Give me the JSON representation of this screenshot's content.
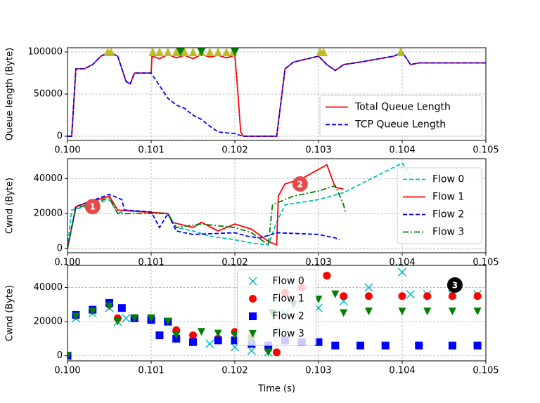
{
  "chart_data": [
    {
      "type": "line",
      "ylabel": "Queue length (Byte)",
      "xlim": [
        0.1,
        0.105
      ],
      "ylim": [
        -5000,
        105000
      ],
      "xticks": [
        {
          "value": 0.1,
          "label": "0.100"
        },
        {
          "value": 0.101,
          "label": "0.101"
        },
        {
          "value": 0.102,
          "label": "0.102"
        },
        {
          "value": 0.103,
          "label": "0.103"
        },
        {
          "value": 0.104,
          "label": "0.104"
        },
        {
          "value": 0.105,
          "label": "0.105"
        }
      ],
      "yticks": [
        0,
        50000,
        100000
      ],
      "grid": true,
      "legend_loc": "lower right",
      "series": [
        {
          "name": "Total Queue Length",
          "color": "#ff0000",
          "linestyle": "solid",
          "x": [
            0.1,
            0.10005,
            0.1001,
            0.1002,
            0.1003,
            0.1004,
            0.1005,
            0.1006,
            0.1007,
            0.10075,
            0.1008,
            0.101,
            0.10101,
            0.1011,
            0.1012,
            0.1013,
            0.1014,
            0.1015,
            0.1016,
            0.1017,
            0.1018,
            0.1019,
            0.102,
            0.10203,
            0.10207,
            0.1021,
            0.1025,
            0.1026,
            0.1027,
            0.103,
            0.1031,
            0.1032,
            0.1033,
            0.1035,
            0.1039,
            0.104,
            0.1041,
            0.1042,
            0.105
          ],
          "values": [
            0,
            0,
            80000,
            80000,
            85000,
            95000,
            100000,
            95000,
            65000,
            62000,
            75000,
            75000,
            95000,
            92000,
            97000,
            93000,
            96000,
            92000,
            97000,
            94000,
            96000,
            93000,
            96000,
            60000,
            5000,
            0,
            0,
            80000,
            88000,
            95000,
            85000,
            78000,
            85000,
            88000,
            95000,
            100000,
            85000,
            87000,
            87000
          ]
        },
        {
          "name": "TCP Queue Length",
          "color": "#0000ff",
          "linestyle": "dashed",
          "x": [
            0.1,
            0.10005,
            0.1001,
            0.1002,
            0.1003,
            0.1004,
            0.1005,
            0.1006,
            0.1007,
            0.10075,
            0.1008,
            0.101,
            0.1011,
            0.1012,
            0.1013,
            0.1014,
            0.1015,
            0.1016,
            0.1017,
            0.1018,
            0.102,
            0.1021,
            0.1025,
            0.1026,
            0.1027,
            0.103,
            0.1031,
            0.1032,
            0.1033,
            0.1035,
            0.1039,
            0.104,
            0.1041,
            0.1042,
            0.105
          ],
          "values": [
            0,
            0,
            80000,
            80000,
            85000,
            95000,
            100000,
            95000,
            65000,
            62000,
            75000,
            75000,
            60000,
            45000,
            37000,
            33000,
            25000,
            20000,
            12000,
            5000,
            3000,
            0,
            0,
            80000,
            88000,
            95000,
            85000,
            78000,
            85000,
            88000,
            95000,
            100000,
            85000,
            87000,
            87000
          ]
        },
        {
          "color": "#bcbd22",
          "marker": "^",
          "x": [
            0.10048,
            0.10052,
            0.10102,
            0.1011,
            0.1012,
            0.1013,
            0.1014,
            0.1015,
            0.1016,
            0.1017,
            0.1018,
            0.1019,
            0.10198,
            0.10302,
            0.10306,
            0.10398
          ],
          "values": [
            100000,
            100000,
            100000,
            100000,
            100000,
            100000,
            100000,
            100000,
            100000,
            100000,
            100000,
            100000,
            100000,
            100000,
            100000,
            100000
          ]
        },
        {
          "color": "#008000",
          "marker": "v",
          "x": [
            0.10135,
            0.1016,
            0.102
          ],
          "values": [
            100000,
            100000,
            100000
          ]
        }
      ]
    },
    {
      "type": "line",
      "ylabel": "Cwnd (Byte)",
      "xlim": [
        0.1,
        0.105
      ],
      "ylim": [
        -2500,
        51500
      ],
      "xticks": [
        {
          "value": 0.1,
          "label": "0.100"
        },
        {
          "value": 0.101,
          "label": "0.101"
        },
        {
          "value": 0.102,
          "label": "0.102"
        },
        {
          "value": 0.103,
          "label": "0.103"
        },
        {
          "value": 0.104,
          "label": "0.104"
        },
        {
          "value": 0.105,
          "label": "0.105"
        }
      ],
      "yticks": [
        0,
        20000,
        40000
      ],
      "grid": true,
      "legend_loc": "center right",
      "series": [
        {
          "name": "Flow 0",
          "color": "#00bfbf",
          "linestyle": "dashed",
          "x": [
            0.1,
            0.10005,
            0.1003,
            0.1005,
            0.1006,
            0.1007,
            0.1012,
            0.1013,
            0.1015,
            0.1017,
            0.102,
            0.1022,
            0.1024,
            0.1025,
            0.1026,
            0.103,
            0.1033,
            0.104,
            0.1041
          ],
          "values": [
            0,
            22000,
            25000,
            28000,
            20000,
            22000,
            20000,
            12000,
            10000,
            7000,
            5000,
            3000,
            2000,
            15000,
            25000,
            28000,
            32000,
            49000,
            42000
          ]
        },
        {
          "name": "Flow 1",
          "color": "#ff0000",
          "linestyle": "solid",
          "x": [
            0.1,
            0.1001,
            0.1005,
            0.1006,
            0.1012,
            0.10125,
            0.1015,
            0.1016,
            0.1018,
            0.102,
            0.1022,
            0.1024,
            0.1025,
            0.10252,
            0.1026,
            0.1028,
            0.1031,
            0.1032,
            0.1033
          ],
          "values": [
            0,
            24000,
            30000,
            22000,
            20000,
            15000,
            12000,
            15000,
            10000,
            14000,
            11000,
            4000,
            2000,
            30000,
            37000,
            40000,
            48000,
            35000,
            34000
          ]
        },
        {
          "name": "Flow 2",
          "color": "#0000ff",
          "linestyle": "dashed",
          "x": [
            0.1,
            0.1001,
            0.1005,
            0.10065,
            0.10068,
            0.101,
            0.1011,
            0.1012,
            0.1013,
            0.1015,
            0.102,
            0.10215,
            0.1023,
            0.1025,
            0.103,
            0.1032,
            0.10325
          ],
          "values": [
            0,
            24000,
            31000,
            28000,
            22000,
            21000,
            12000,
            20000,
            10000,
            8000,
            9000,
            7000,
            6000,
            9000,
            8000,
            6000,
            5000
          ]
        },
        {
          "name": "Flow 3",
          "color": "#008000",
          "linestyle": "dashdot",
          "x": [
            0.1,
            0.1001,
            0.1005,
            0.1006,
            0.1012,
            0.1013,
            0.1016,
            0.102,
            0.1022,
            0.1024,
            0.10245,
            0.1027,
            0.103,
            0.1032,
            0.1033,
            0.10332
          ],
          "values": [
            0,
            23000,
            29000,
            20000,
            20000,
            12000,
            14000,
            12000,
            9000,
            2000,
            25000,
            30000,
            33000,
            36000,
            25000,
            21000
          ]
        }
      ],
      "annotations": [
        {
          "text": "1",
          "x": 0.1003,
          "y": 24000,
          "color": "#e84a4a"
        },
        {
          "text": "2",
          "x": 0.10278,
          "y": 37000,
          "color": "#e84a4a"
        }
      ]
    },
    {
      "type": "scatter",
      "ylabel": "Cwnd (Byte)",
      "xlabel": "Time (s)",
      "xlim": [
        0.1,
        0.105
      ],
      "ylim": [
        -3000,
        53000
      ],
      "xticks": [
        {
          "value": 0.1,
          "label": "0.100"
        },
        {
          "value": 0.101,
          "label": "0.101"
        },
        {
          "value": 0.102,
          "label": "0.102"
        },
        {
          "value": 0.103,
          "label": "0.103"
        },
        {
          "value": 0.104,
          "label": "0.104"
        },
        {
          "value": 0.105,
          "label": "0.105"
        }
      ],
      "yticks": [
        0,
        20000,
        40000
      ],
      "grid": true,
      "legend_loc": "upper center",
      "series": [
        {
          "name": "Flow 0",
          "color": "#00bfbf",
          "marker": "x",
          "x": [
            0.1,
            0.1001,
            0.1003,
            0.1005,
            0.1006,
            0.1007,
            0.101,
            0.1012,
            0.1013,
            0.1015,
            0.1017,
            0.102,
            0.1022,
            0.1024,
            0.1025,
            0.1026,
            0.103,
            0.1033,
            0.1036,
            0.104,
            0.1041,
            0.1043,
            0.1046,
            0.1049
          ],
          "values": [
            0,
            22000,
            25000,
            28000,
            20000,
            22000,
            22000,
            20000,
            12000,
            10000,
            7000,
            5000,
            3000,
            2000,
            15000,
            25000,
            28000,
            32000,
            40000,
            49000,
            36000,
            36000,
            36000,
            36000
          ]
        },
        {
          "name": "Flow 1",
          "color": "#ff0000",
          "marker": "o",
          "x": [
            0.1,
            0.1001,
            0.1003,
            0.1005,
            0.1006,
            0.1008,
            0.101,
            0.1012,
            0.1013,
            0.1015,
            0.1018,
            0.102,
            0.1022,
            0.1024,
            0.1025,
            0.1026,
            0.1028,
            0.1031,
            0.1033,
            0.1036,
            0.104,
            0.1043,
            0.1046,
            0.1049
          ],
          "values": [
            0,
            24000,
            27000,
            30000,
            22000,
            22000,
            22000,
            20000,
            15000,
            12000,
            10000,
            14000,
            11000,
            4000,
            2000,
            37000,
            40000,
            47000,
            35000,
            35000,
            35000,
            35000,
            35000,
            35000
          ]
        },
        {
          "name": "Flow 2",
          "color": "#0000ff",
          "marker": "s",
          "x": [
            0.1,
            0.1001,
            0.1003,
            0.1005,
            0.10065,
            0.1008,
            0.101,
            0.1011,
            0.1012,
            0.1013,
            0.1015,
            0.1018,
            0.102,
            0.1022,
            0.1024,
            0.1026,
            0.1028,
            0.103,
            0.1032,
            0.1035,
            0.1038,
            0.1042,
            0.1046,
            0.1049
          ],
          "values": [
            0,
            24000,
            27000,
            31000,
            28000,
            22000,
            21000,
            12000,
            20000,
            10000,
            8000,
            9000,
            9000,
            7000,
            6000,
            9000,
            8000,
            8000,
            6000,
            6000,
            6000,
            6000,
            6000,
            6000
          ]
        },
        {
          "name": "Flow 3",
          "color": "#008000",
          "marker": "v",
          "x": [
            0.1,
            0.1001,
            0.1003,
            0.1005,
            0.1006,
            0.1008,
            0.101,
            0.1012,
            0.1013,
            0.1016,
            0.1018,
            0.102,
            0.1022,
            0.1024,
            0.10245,
            0.1027,
            0.103,
            0.1032,
            0.1033,
            0.1036,
            0.104,
            0.1043,
            0.1046,
            0.1049
          ],
          "values": [
            0,
            23000,
            26000,
            29000,
            20000,
            22000,
            22000,
            20000,
            12000,
            14000,
            13000,
            12000,
            9000,
            2000,
            25000,
            30000,
            33000,
            36000,
            25000,
            26000,
            26000,
            26000,
            26000,
            26000
          ]
        }
      ],
      "annotations": [
        {
          "text": "3",
          "x": 0.10463,
          "y": 41500,
          "color": "#000000"
        }
      ]
    }
  ]
}
